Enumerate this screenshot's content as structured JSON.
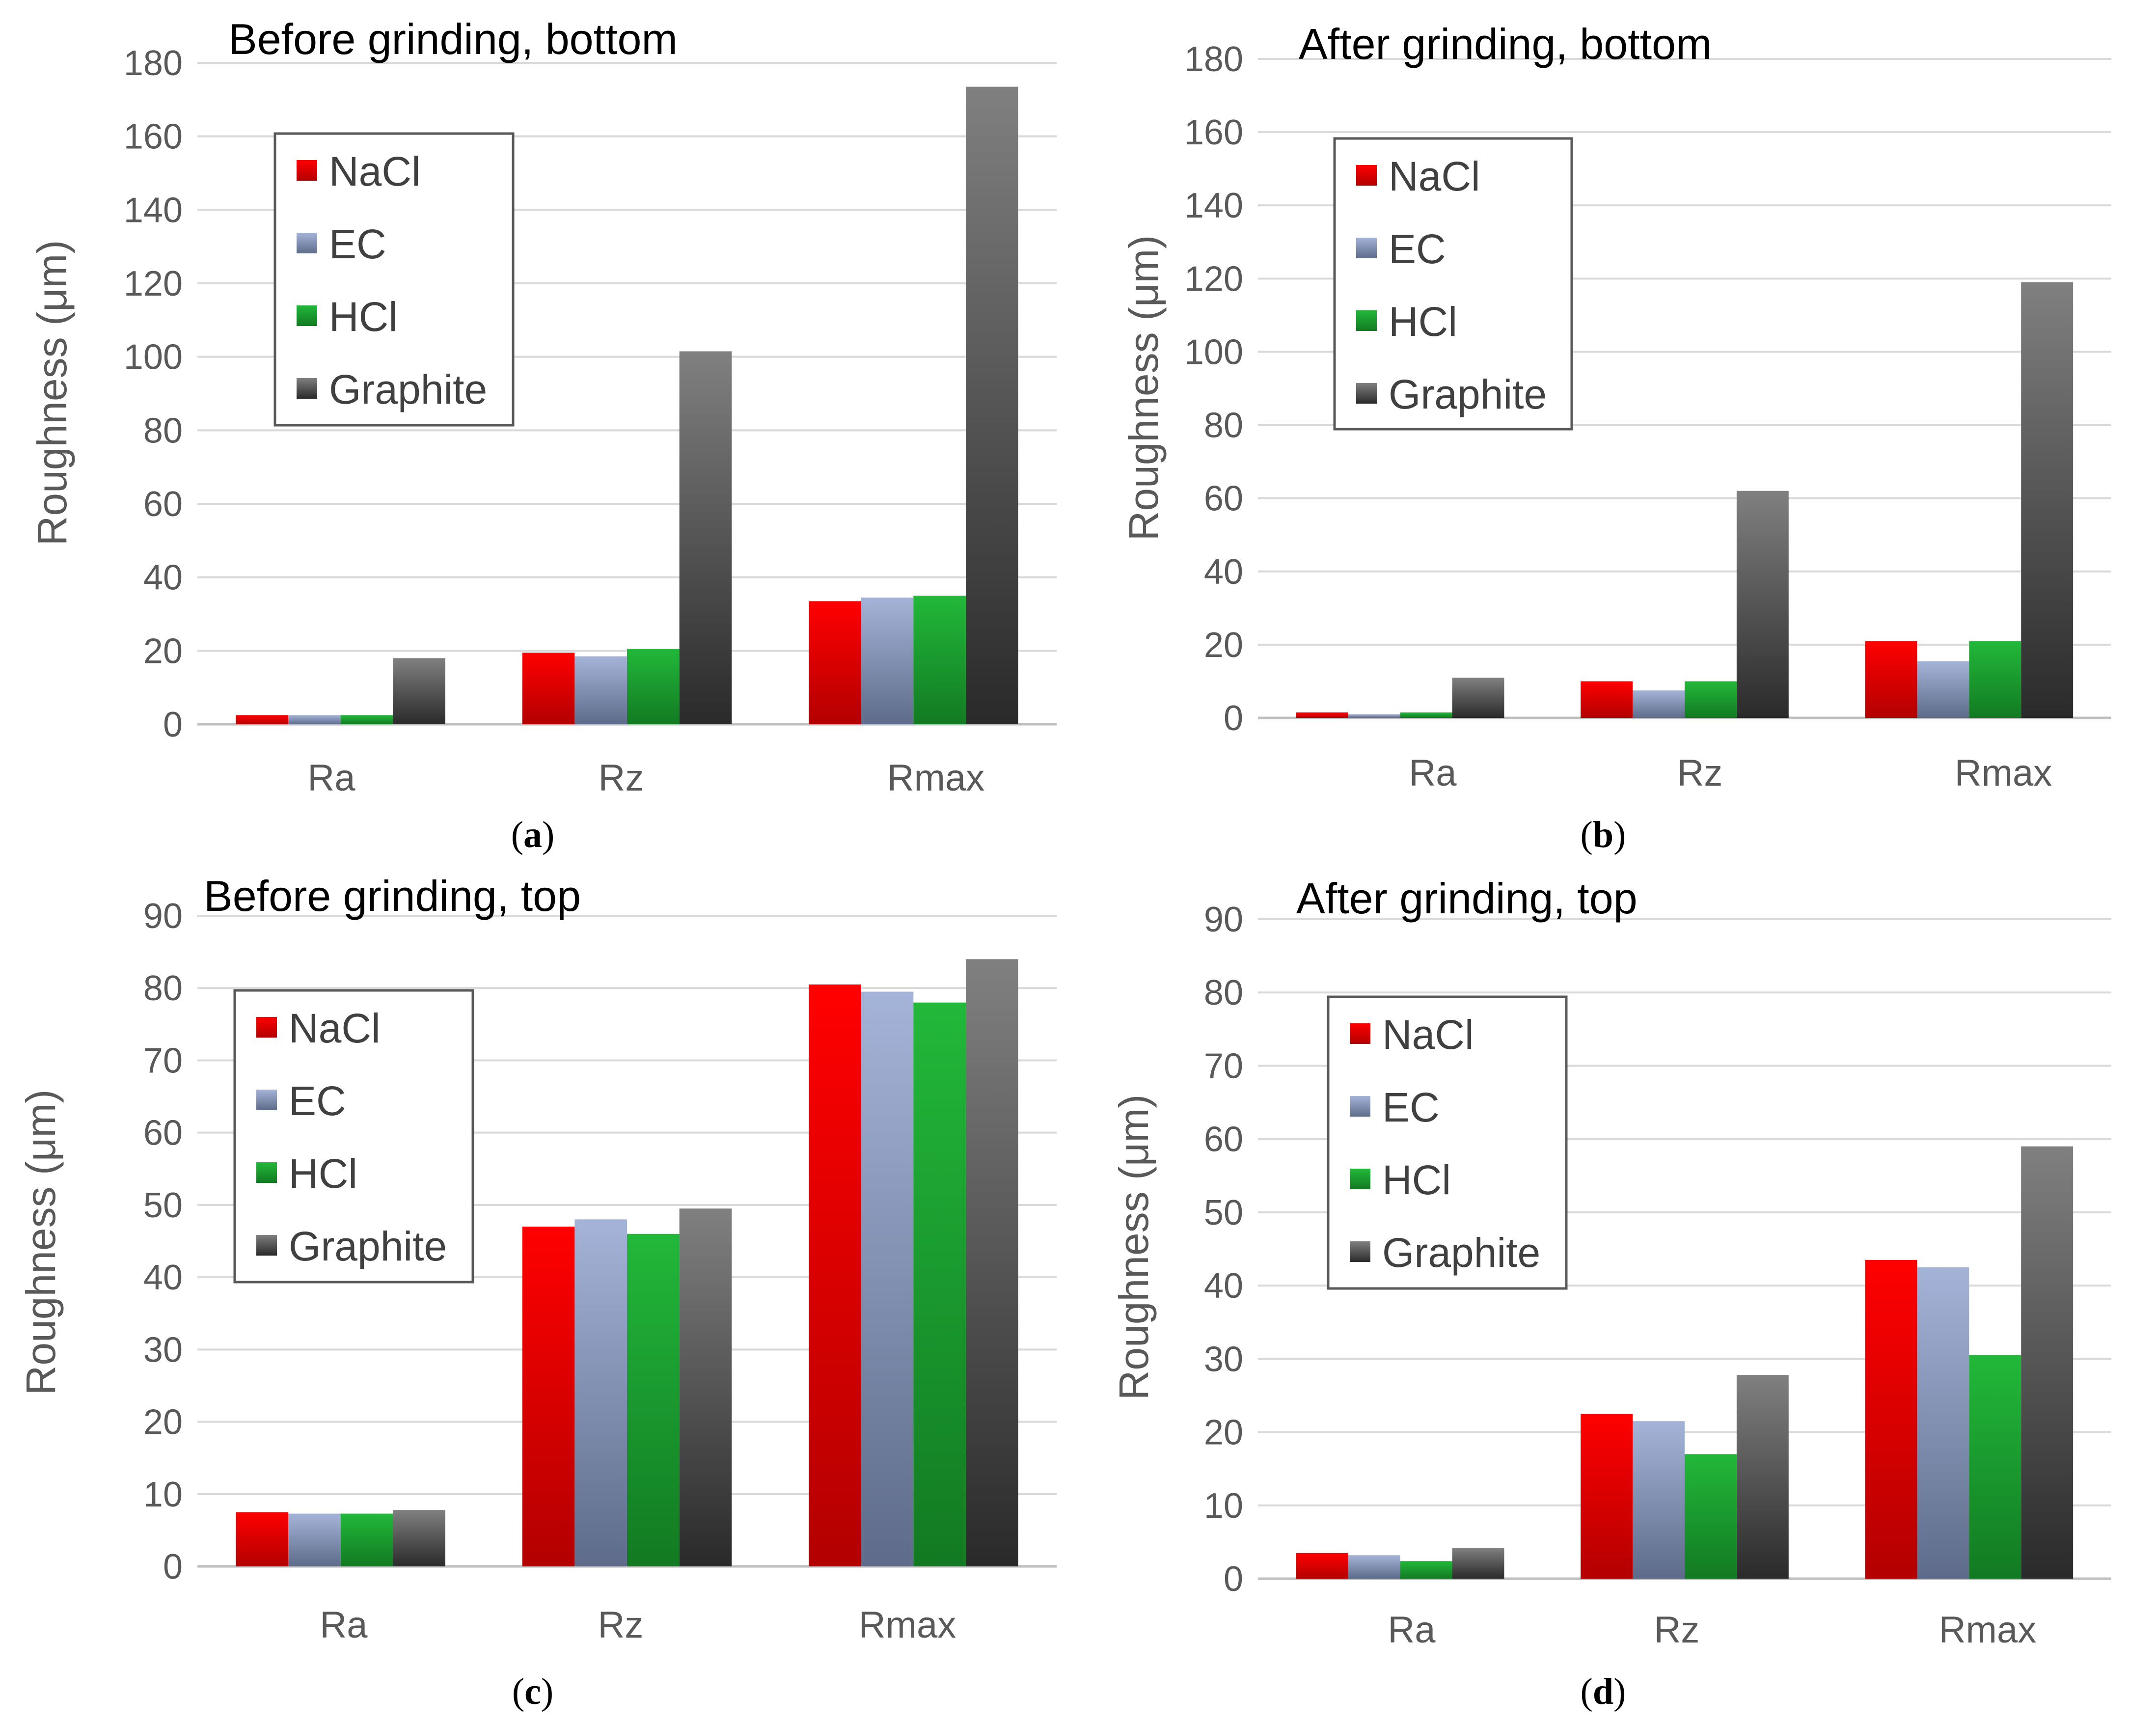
{
  "series_styles": [
    {
      "name": "NaCl",
      "top": "#ff0000",
      "bottom": "#b30000"
    },
    {
      "name": "EC",
      "top": "#a4b4d8",
      "bottom": "#5e6b8a"
    },
    {
      "name": "HCl",
      "top": "#22b83a",
      "bottom": "#127a22"
    },
    {
      "name": "Graphite",
      "top": "#808080",
      "bottom": "#2a2a2a"
    }
  ],
  "chart_data": [
    {
      "type": "bar",
      "id": "a",
      "title": "Before grinding, bottom",
      "caption_letter": "a",
      "ylabel": "Roughness (μm)",
      "xlabel": "",
      "ylim": [
        0,
        180
      ],
      "ytick_step": 20,
      "ytick_labels": [
        "0",
        "20",
        "40",
        "60",
        "80",
        "100",
        "120",
        "140",
        "160",
        "180"
      ],
      "grid": true,
      "legend": "upper-left",
      "categories": [
        "Ra",
        "Rz",
        "Rmax"
      ],
      "series": [
        {
          "name": "NaCl",
          "values": [
            2.5,
            19.5,
            33.5
          ]
        },
        {
          "name": "EC",
          "values": [
            2.5,
            18.5,
            34.5
          ]
        },
        {
          "name": "HCl",
          "values": [
            2.5,
            20.5,
            35
          ]
        },
        {
          "name": "Graphite",
          "values": [
            18,
            101.5,
            173.5
          ]
        }
      ]
    },
    {
      "type": "bar",
      "id": "b",
      "title": "After grinding, bottom",
      "caption_letter": "b",
      "ylabel": "Roughness (μm)",
      "xlabel": "",
      "ylim": [
        0,
        180
      ],
      "ytick_step": 20,
      "ytick_labels": [
        "0",
        "20",
        "40",
        "60",
        "80",
        "100",
        "120",
        "140",
        "160",
        "180"
      ],
      "grid": true,
      "legend": "upper-left",
      "categories": [
        "Ra",
        "Rz",
        "Rmax"
      ],
      "series": [
        {
          "name": "NaCl",
          "values": [
            1.5,
            10,
            21
          ]
        },
        {
          "name": "EC",
          "values": [
            1,
            7.5,
            15.5
          ]
        },
        {
          "name": "HCl",
          "values": [
            1.5,
            10,
            21
          ]
        },
        {
          "name": "Graphite",
          "values": [
            11,
            62,
            119
          ]
        }
      ]
    },
    {
      "type": "bar",
      "id": "c",
      "title": "Before grinding, top",
      "caption_letter": "c",
      "ylabel": "Roughness (μm)",
      "xlabel": "",
      "ylim": [
        0,
        90
      ],
      "ytick_step": 10,
      "ytick_labels": [
        "0",
        "10",
        "20",
        "30",
        "40",
        "50",
        "60",
        "70",
        "80",
        "90"
      ],
      "grid": true,
      "legend": "upper-left",
      "categories": [
        "Ra",
        "Rz",
        "Rmax"
      ],
      "series": [
        {
          "name": "NaCl",
          "values": [
            7.5,
            47,
            80.5
          ]
        },
        {
          "name": "EC",
          "values": [
            7.3,
            48,
            79.5
          ]
        },
        {
          "name": "HCl",
          "values": [
            7.3,
            46,
            78
          ]
        },
        {
          "name": "Graphite",
          "values": [
            7.8,
            49.5,
            84
          ]
        }
      ]
    },
    {
      "type": "bar",
      "id": "d",
      "title": "After grinding, top",
      "caption_letter": "d",
      "ylabel": "Roughness (μm)",
      "xlabel": "",
      "ylim": [
        0,
        90
      ],
      "ytick_step": 10,
      "ytick_labels": [
        "0",
        "10",
        "20",
        "30",
        "40",
        "50",
        "60",
        "70",
        "80",
        "90"
      ],
      "grid": true,
      "legend": "upper-left",
      "categories": [
        "Ra",
        "Rz",
        "Rmax"
      ],
      "series": [
        {
          "name": "NaCl",
          "values": [
            3.5,
            22.5,
            43.5
          ]
        },
        {
          "name": "EC",
          "values": [
            3.2,
            21.5,
            42.5
          ]
        },
        {
          "name": "HCl",
          "values": [
            2.4,
            17,
            30.5
          ]
        },
        {
          "name": "Graphite",
          "values": [
            4.2,
            27.8,
            59
          ]
        }
      ]
    }
  ]
}
